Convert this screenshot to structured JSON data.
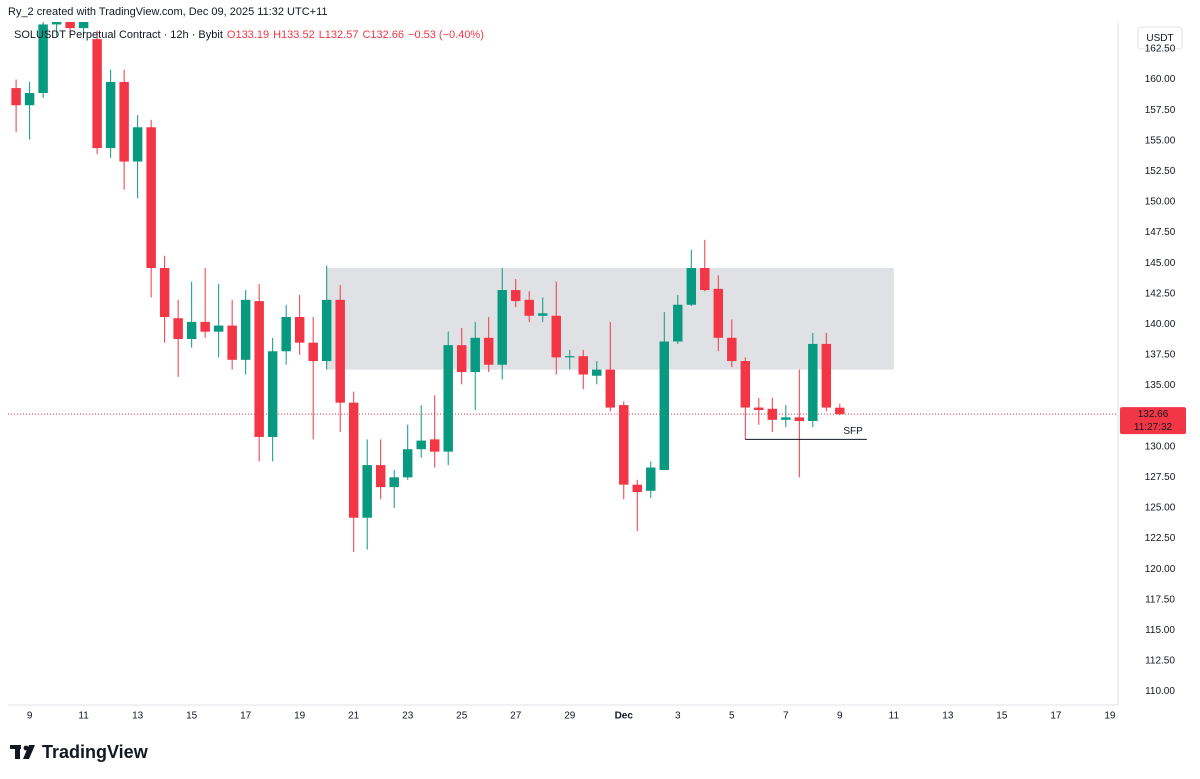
{
  "chart_data": {
    "type": "candlestick",
    "header": "Ry_2 created with TradingView.com, Dec 09, 2025 11:32 UTC+11",
    "legend": {
      "symbol": "SOLUSDT Perpetual Contract · 12h · Bybit",
      "values": [
        "O133.19",
        "H133.52",
        "L132.57",
        "C132.66",
        "−0.53 (−0.40%)"
      ]
    },
    "currency": "USDT",
    "brand": "TradingView",
    "up_color": "#089981",
    "down_color": "#f23645",
    "grid": false,
    "x": [
      8.5,
      9,
      9.5,
      10,
      10.5,
      11,
      11.5,
      12,
      12.5,
      13,
      13.5,
      14,
      14.5,
      15,
      15.5,
      16,
      16.5,
      17,
      17.5,
      18,
      18.5,
      19,
      19.5,
      20,
      20.5,
      21,
      21.5,
      22,
      22.5,
      23,
      23.5,
      24,
      24.5,
      25,
      25.5,
      26,
      26.5,
      27,
      27.5,
      28,
      28.5,
      29,
      29.5,
      30,
      30.5,
      31,
      31.5,
      32,
      32.5,
      33,
      33.5,
      34,
      34.5,
      35,
      35.5,
      36,
      36.5,
      37,
      37.5,
      38,
      38.5,
      39
    ],
    "open": [
      159.3,
      157.9,
      158.9,
      164.5,
      165,
      164.2,
      163.3,
      154.4,
      159.8,
      153.3,
      156.1,
      144.6,
      140.5,
      138.8,
      140.2,
      139.4,
      139.9,
      137.1,
      141.9,
      130.8,
      137.8,
      140.6,
      138.5,
      137.0,
      142.0,
      133.6,
      124.2,
      128.5,
      126.7,
      127.5,
      129.8,
      130.6,
      129.6,
      138.3,
      136.1,
      138.9,
      136.7,
      142.8,
      142.0,
      140.7,
      140.7,
      137.3,
      137.4,
      135.8,
      136.3,
      133.4,
      126.9,
      126.4,
      128.1,
      138.6,
      141.6,
      144.6,
      142.9,
      138.9,
      137.0,
      133.2,
      133.1,
      132.2,
      132.4,
      132.1,
      138.4,
      133.19
    ],
    "high": [
      160,
      159.8,
      166,
      166.5,
      166.5,
      165.5,
      164,
      160.8,
      160.8,
      157.1,
      156.7,
      145.6,
      142.0,
      143.5,
      144.6,
      143.3,
      142.0,
      142.8,
      143.3,
      138.9,
      141.6,
      142.4,
      140.6,
      144.8,
      143.2,
      134.5,
      130.6,
      130.6,
      128.1,
      131.8,
      133.4,
      134.2,
      139.4,
      139.7,
      140.2,
      140.6,
      144.6,
      143.7,
      142.7,
      142.2,
      143.5,
      137.9,
      137.9,
      137.0,
      140.2,
      133.7,
      127.3,
      128.8,
      141.0,
      142.4,
      146.1,
      146.9,
      144.0,
      140.4,
      137.3,
      134.0,
      134.0,
      133.4,
      136.3,
      139.3,
      139.3,
      133.52
    ],
    "low": [
      155.7,
      155.1,
      158.5,
      163.5,
      163.8,
      163.7,
      153.9,
      153.6,
      151.0,
      150.3,
      142.2,
      138.5,
      135.7,
      138.1,
      138.9,
      137.3,
      136.3,
      135.9,
      128.8,
      128.8,
      136.7,
      137.5,
      130.6,
      136.3,
      131.2,
      121.4,
      121.6,
      125.7,
      125.0,
      127.3,
      129.1,
      128.3,
      128.5,
      135.1,
      133.0,
      136.1,
      135.5,
      141.4,
      140.2,
      140.2,
      135.9,
      136.3,
      134.7,
      135.1,
      132.9,
      125.7,
      123.1,
      125.8,
      128.1,
      138.4,
      141.5,
      142.7,
      137.8,
      136.5,
      130.6,
      131.8,
      131.2,
      131.6,
      127.5,
      131.6,
      132.9,
      132.57
    ],
    "close": [
      157.9,
      158.9,
      164.5,
      165,
      164.2,
      164.8,
      154.4,
      159.8,
      153.3,
      156.1,
      144.6,
      140.6,
      138.8,
      140.2,
      139.4,
      139.9,
      137.1,
      142.0,
      130.8,
      137.8,
      140.6,
      138.5,
      137.0,
      142.0,
      133.6,
      124.2,
      128.5,
      126.7,
      127.5,
      129.8,
      130.5,
      129.6,
      138.3,
      136.1,
      138.9,
      136.7,
      142.8,
      141.9,
      140.7,
      140.9,
      137.3,
      137.4,
      135.9,
      136.3,
      133.2,
      126.9,
      126.3,
      128.3,
      138.6,
      141.6,
      144.6,
      142.8,
      138.9,
      137.0,
      133.2,
      133.0,
      132.2,
      132.4,
      132.1,
      138.4,
      133.2,
      132.66
    ],
    "xlim": [
      8.2,
      49.3
    ],
    "ylim": [
      108.9,
      164.7
    ],
    "xticks": [
      9,
      11,
      13,
      15,
      17,
      19,
      21,
      23,
      25,
      27,
      29,
      {
        "value": 31,
        "label": "Dec"
      },
      {
        "value": 33,
        "label": "3"
      },
      {
        "value": 35,
        "label": "5"
      },
      {
        "value": 37,
        "label": "7"
      },
      {
        "value": 39,
        "label": "9"
      },
      {
        "value": 41,
        "label": "11"
      },
      {
        "value": 43,
        "label": "13"
      },
      {
        "value": 45,
        "label": "15"
      },
      {
        "value": 47,
        "label": "17"
      },
      {
        "value": 49,
        "label": "19"
      }
    ],
    "yticks": [
      {
        "value": 110,
        "label": "110.00"
      },
      {
        "value": 112.5,
        "label": "112.50"
      },
      {
        "value": 115,
        "label": "115.00"
      },
      {
        "value": 117.5,
        "label": "117.50"
      },
      {
        "value": 120,
        "label": "120.00"
      },
      {
        "value": 122.5,
        "label": "122.50"
      },
      {
        "value": 125,
        "label": "125.00"
      },
      {
        "value": 127.5,
        "label": "127.50"
      },
      {
        "value": 130,
        "label": "130.00"
      },
      {
        "value": 132.5,
        "label": "132.50"
      },
      {
        "value": 135,
        "label": "135.00"
      },
      {
        "value": 137.5,
        "label": "137.50"
      },
      {
        "value": 140,
        "label": "140.00"
      },
      {
        "value": 142.5,
        "label": "142.50"
      },
      {
        "value": 145,
        "label": "145.00"
      },
      {
        "value": 147.5,
        "label": "147.50"
      },
      {
        "value": 150,
        "label": "150.00"
      },
      {
        "value": 152.5,
        "label": "152.50"
      },
      {
        "value": 155,
        "label": "155.00"
      },
      {
        "value": 157.5,
        "label": "157.50"
      },
      {
        "value": 160,
        "label": "160.00"
      },
      {
        "value": 162.5,
        "label": "162.50"
      }
    ],
    "zones": [
      {
        "x": [
          20,
          41
        ],
        "y": [
          136.3,
          144.6
        ],
        "color": "#e0e1e4"
      }
    ],
    "annotations": [
      {
        "text": "SFP",
        "x": [
          35.5,
          40
        ],
        "y": 130.6
      }
    ],
    "last_price": {
      "value": 132.66,
      "countdown": "11:27:32"
    }
  }
}
